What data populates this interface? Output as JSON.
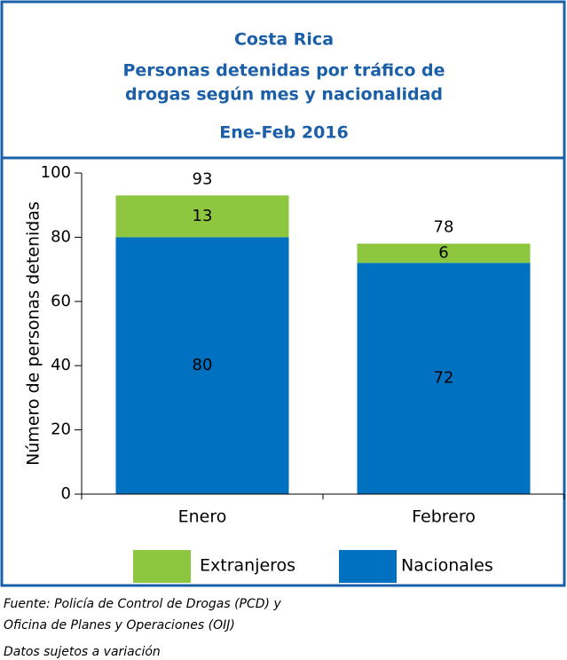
{
  "chart_data": {
    "type": "stacked_bar",
    "title": "Costa Rica",
    "subtitle": [
      "Personas detenidas  por tráfico de",
      "drogas según mes y nacionalidad",
      "Ene-Feb  2016"
    ],
    "ylabel": "Número de personas detenidas",
    "categories": [
      "Enero",
      "Febrero"
    ],
    "series": [
      {
        "name": "Nacionales",
        "color": "#0070c0",
        "values": [
          80,
          72
        ]
      },
      {
        "name": "Extranjeros",
        "color": "#8dc63f",
        "values": [
          13,
          6
        ]
      }
    ],
    "totals": [
      93,
      78
    ],
    "ylim": [
      0,
      100
    ],
    "yticks": [
      0,
      20,
      40,
      60,
      80,
      100
    ],
    "source": [
      "Fuente: Policía de Control de Drogas (PCD) y",
      "Oficina de Planes y Operaciones (OIJ)"
    ],
    "note": "Datos sujetos a variación"
  }
}
